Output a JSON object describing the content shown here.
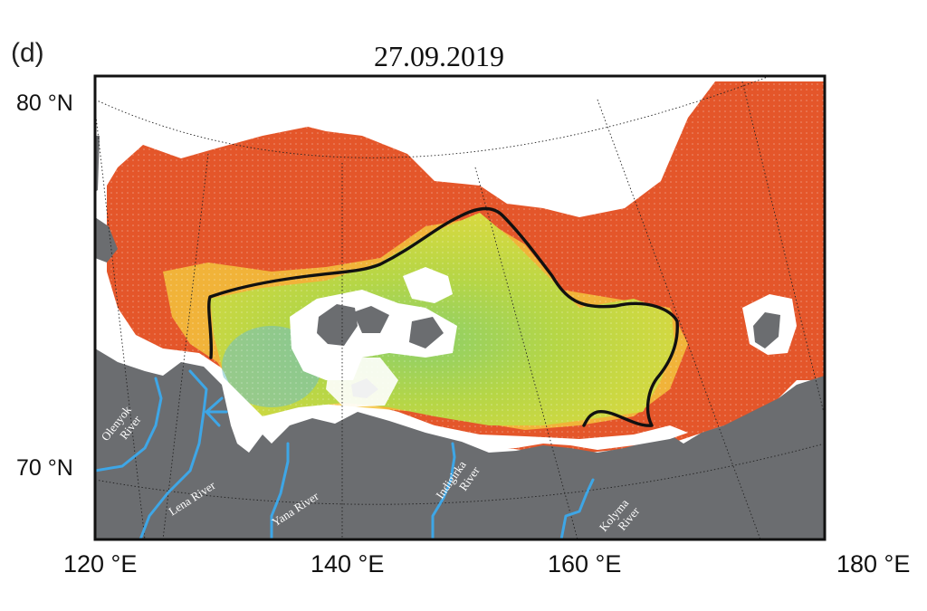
{
  "panel_label": "(d)",
  "title": "27.09.2019",
  "lat_labels": [
    "80 °N",
    "70 °N"
  ],
  "lon_labels": [
    "120 °E",
    "140 °E",
    "160 °E",
    "180 °E"
  ],
  "rivers": [
    {
      "name": "Olenyok River",
      "lines": [
        "Olenyok",
        "River"
      ]
    },
    {
      "name": "Lena River",
      "lines": [
        "Lena River"
      ]
    },
    {
      "name": "Yana River",
      "lines": [
        "Yana River"
      ]
    },
    {
      "name": "Indigirka River",
      "lines": [
        "Indigirka",
        "River"
      ]
    },
    {
      "name": "Kolyma River",
      "lines": [
        "Kolyma",
        "River"
      ]
    }
  ],
  "colors": {
    "land": "#6b6d70",
    "river": "#3ea6e6",
    "contour": "#111111",
    "frame": "#111111",
    "high": "#e4562a",
    "mid": "#f3c33c",
    "low": "#a8d24a",
    "lowest": "#6cc0c8"
  }
}
